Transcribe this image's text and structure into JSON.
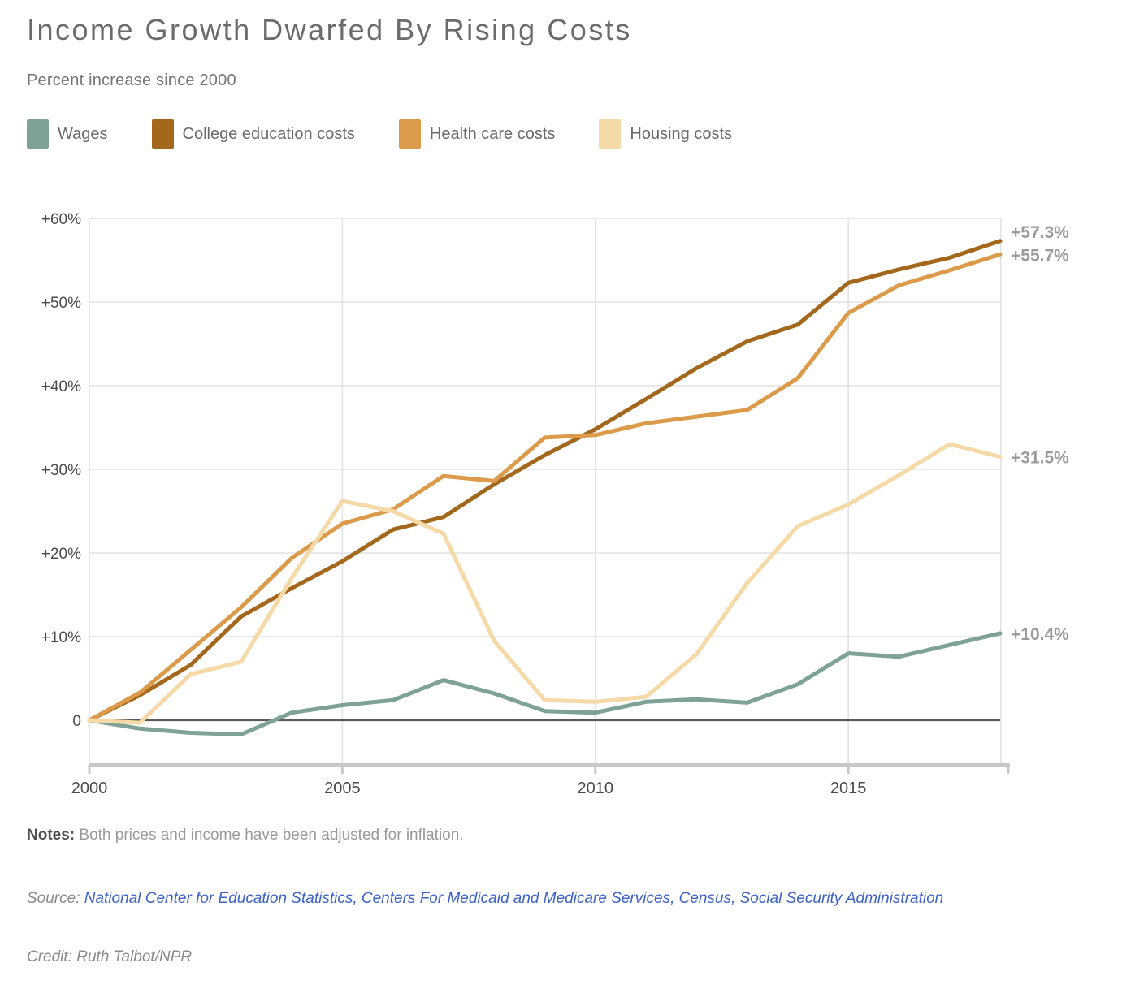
{
  "header": {
    "title": "Income Growth Dwarfed By Rising Costs",
    "subtitle": "Percent increase since 2000"
  },
  "chart_data": {
    "type": "line",
    "title": "Income Growth Dwarfed By Rising Costs",
    "subtitle": "Percent increase since 2000",
    "x": [
      2000,
      2001,
      2002,
      2003,
      2004,
      2005,
      2006,
      2007,
      2008,
      2009,
      2010,
      2011,
      2012,
      2013,
      2014,
      2015,
      2016,
      2017,
      2018
    ],
    "xticks": [
      2000,
      2005,
      2010,
      2015
    ],
    "xtick_labels": [
      "2000",
      "2005",
      "2010",
      "2015"
    ],
    "yticks": [
      0,
      10,
      20,
      30,
      40,
      50,
      60
    ],
    "ytick_labels": [
      "0",
      "+10%",
      "+20%",
      "+30%",
      "+40%",
      "+50%",
      "+60%"
    ],
    "ylim": [
      -5,
      62
    ],
    "xlim": [
      2000,
      2018
    ],
    "grid": true,
    "legend_position": "top",
    "series": [
      {
        "name": "Wages",
        "color": "#7EA296",
        "end_label": "+10.4%",
        "values": [
          0,
          -1.0,
          -1.5,
          -1.7,
          0.9,
          1.8,
          2.4,
          4.8,
          3.2,
          1.1,
          0.9,
          2.2,
          2.5,
          2.1,
          4.3,
          8.0,
          7.6,
          9.0,
          10.4
        ]
      },
      {
        "name": "College education costs",
        "color": "#A4681C",
        "end_label": "+57.3%",
        "values": [
          0,
          3.0,
          6.6,
          12.4,
          15.8,
          19.0,
          22.8,
          24.3,
          28.2,
          31.7,
          34.8,
          38.4,
          42.1,
          45.3,
          47.3,
          52.3,
          53.9,
          55.3,
          57.3
        ]
      },
      {
        "name": "Health care costs",
        "color": "#DC9B4A",
        "end_label": "+55.7%",
        "values": [
          0,
          3.3,
          8.4,
          13.5,
          19.4,
          23.5,
          25.2,
          29.2,
          28.6,
          33.8,
          34.1,
          35.5,
          36.3,
          37.1,
          40.9,
          48.7,
          52.0,
          53.8,
          55.7
        ]
      },
      {
        "name": "Housing costs",
        "color": "#F5D9A6",
        "end_label": "+31.5%",
        "values": [
          0,
          -0.3,
          5.5,
          7.0,
          17.0,
          26.2,
          25.0,
          22.3,
          9.5,
          2.4,
          2.2,
          2.8,
          7.9,
          16.4,
          23.2,
          25.8,
          29.3,
          33.0,
          31.5
        ]
      }
    ]
  },
  "colors": {
    "gridline": "#E2E2E2",
    "zero_line": "#595959",
    "axis_line": "#C8C8C8",
    "tick_text": "#4A4A4A",
    "end_label_text": "#9B9B9B",
    "link": "#3E62C6"
  },
  "footer": {
    "notes_label": "Notes:",
    "notes_text": " Both prices and income have been adjusted for inflation.",
    "source_label": "Source: ",
    "sources": [
      "National Center for Education Statistics",
      "Centers For Medicaid and Medicare Services",
      "Census",
      "Social Security Administration"
    ],
    "credit": "Credit: Ruth Talbot/NPR"
  }
}
